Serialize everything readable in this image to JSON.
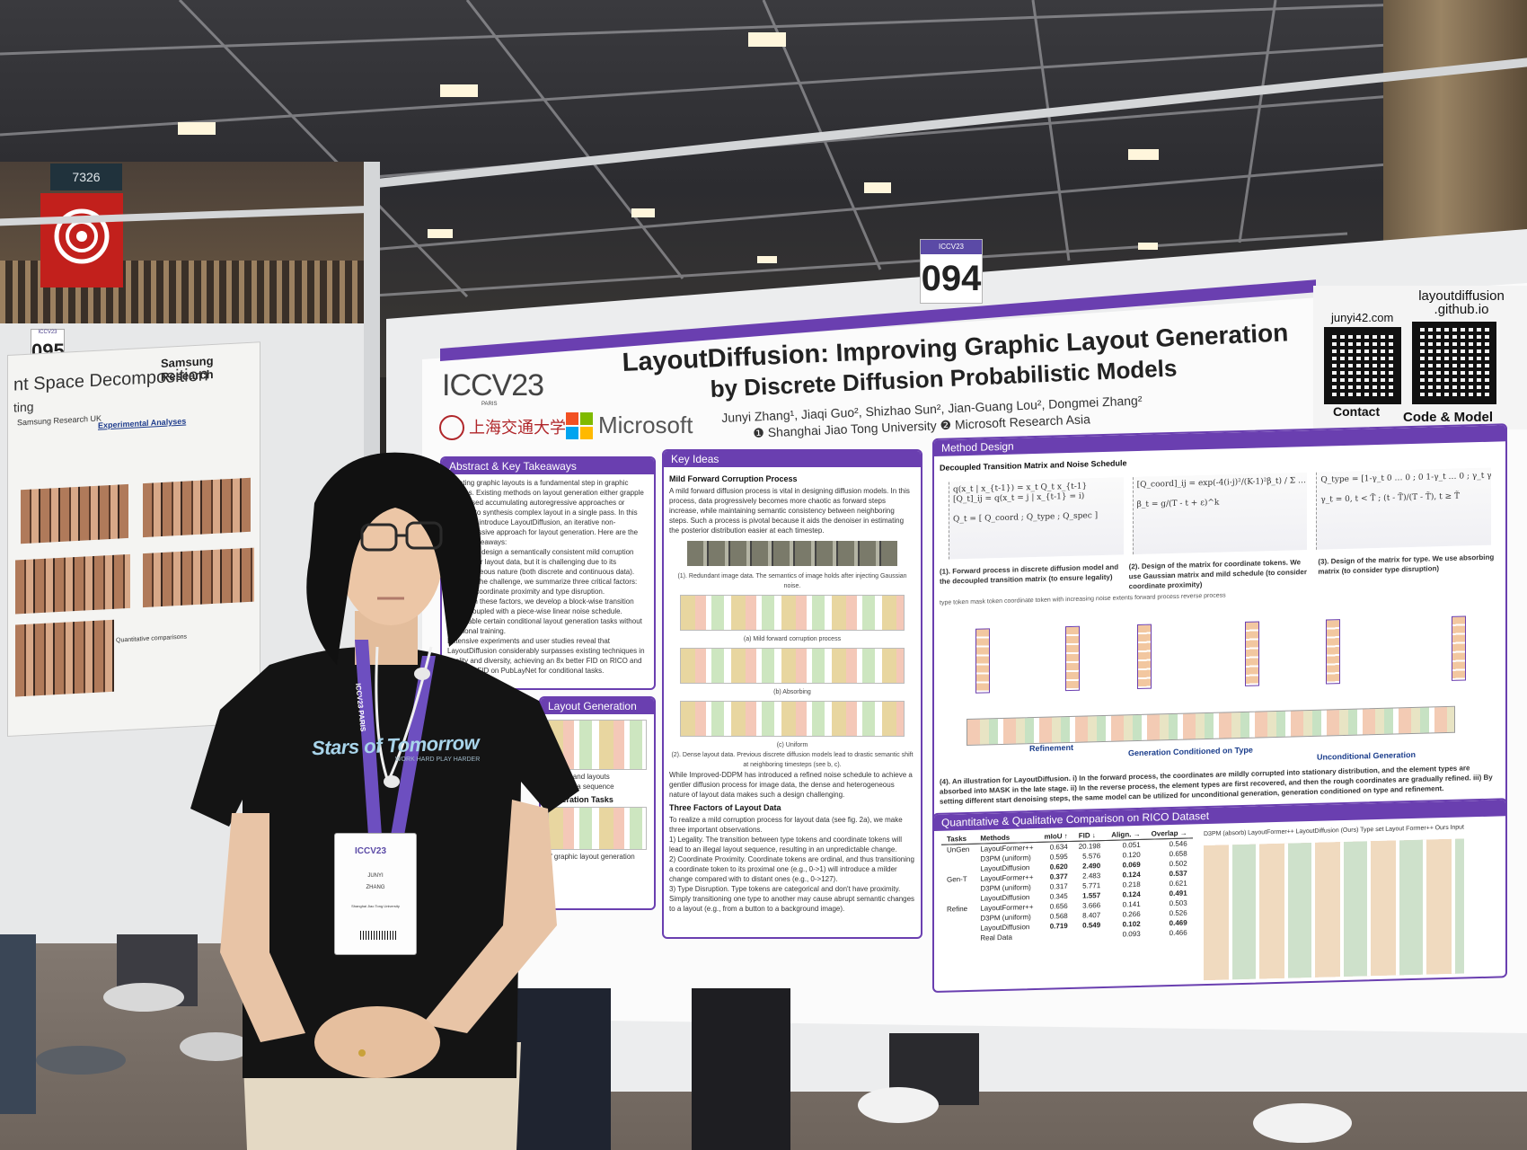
{
  "venue": {
    "left_sign_number": "7326",
    "left_board_number": "095",
    "main_board_number": "094",
    "board_tag_small": "ICCV23"
  },
  "left_poster": {
    "title": "nt Space Decomposition",
    "title_line2": "ting",
    "brand": "Samsung Research",
    "affiliation": "Samsung Research UK",
    "section": "Experimental Analyses",
    "caption": "Quantitative comparisons"
  },
  "poster": {
    "title_prefix": "LayoutDiffusion:",
    "title_rest": " Improving Graphic Layout Generation",
    "title_line2": "by Discrete Diffusion Probabilistic Models",
    "authors": "Junyi Zhang¹, Jiaqi Guo², Shizhao Sun², Jian-Guang Lou², Dongmei Zhang²",
    "affiliations": "❶ Shanghai Jiao Tong University  ❷ Microsoft Research Asia",
    "logos": {
      "iccv": "ICCV23",
      "iccv_sub": "PARIS",
      "sjtu": "上海交通大学",
      "microsoft": "Microsoft"
    },
    "links": {
      "contact_url": "junyi42.com",
      "contact_label": "Contact",
      "code_url": "layoutdiffusion .github.io",
      "code_label": "Code & Model"
    },
    "abstract": {
      "heading": "Abstract & Key Takeaways",
      "text": "Creating graphic layouts is a fundamental step in graphic designs. Existing methods on layout generation either grapple with biased accumulating autoregressive approaches or struggle to synthesis complex layout in a single pass. In this study, we introduce LayoutDiffusion, an iterative non-autoregressive approach for layout generation. Here are the central takeaways:",
      "point1": "We aim to design a semantically consistent mild corruption process for layout data, but it is challenging due to its heterogeneous nature (both discrete and continuous data).",
      "point2": "To tackle the challenge, we summarize three critical factors: Legality, coordinate proximity and type disruption.",
      "point3": "Based on these factors, we develop a block-wise transition matrix coupled with a piece-wise linear noise schedule.",
      "point4": "We enable certain conditional layout generation tasks without additional training.",
      "point5": "Extensive experiments and user studies reveal that LayoutDiffusion considerably surpasses existing techniques in quality and diversity, achieving an 8x better FID on RICO and 4x better FID on PubLayNet for conditional tasks."
    },
    "layout_generation": {
      "heading": "Layout Generation",
      "text1": "designs and layouts",
      "text2": "layout as a sequence",
      "text3": "Generation Tasks",
      "caption": "of graphic layout generation"
    },
    "key_ideas": {
      "heading": "Key Ideas",
      "sub1": "Mild Forward Corruption Process",
      "text1": "A mild forward diffusion process is vital in designing diffusion models. In this process, data progressively becomes more chaotic as forward steps increase, while maintaining semantic consistency between neighboring steps. Such a process is pivotal because it aids the denoiser in estimating the posterior distribution easier at each timestep.",
      "cap1": "(1). Redundant image data. The semantics of image holds after injecting Gaussian noise.",
      "cap_a": "(a) Mild forward corruption process",
      "cap_b": "(b) Absorbing",
      "cap_c": "(c) Uniform",
      "cap2": "(2). Dense layout data. Previous discrete diffusion models lead to drastic semantic shift at neighboring timesteps (see b, c).",
      "text2": "While Improved-DDPM has introduced a refined noise schedule to achieve a gentler diffusion process for image data, the dense and heterogeneous nature of layout data makes such a design challenging.",
      "sub2": "Three Factors of Layout Data",
      "text3": "To realize a mild corruption process for layout data (see fig. 2a), we make three important observations.",
      "f1": "1) Legality. The transition between type tokens and coordinate tokens will lead to an illegal layout sequence, resulting in an unpredictable change.",
      "f2": "2) Coordinate Proximity. Coordinate tokens are ordinal, and thus transitioning a coordinate token to its proximal one (e.g., 0->1) will introduce a milder change compared with to distant ones (e.g., 0->127).",
      "f3": "3) Type Disruption. Type tokens are categorical and don't have proximity. Simply transitioning one type to another may cause abrupt semantic changes to a layout (e.g., from a button to a background image)."
    },
    "method": {
      "heading": "Method Design",
      "sub": "Decoupled Transition Matrix and Noise Schedule",
      "cap1": "(1). Forward process in discrete diffusion model and the decoupled transition matrix (to ensure legality)",
      "cap2": "(2). Design of the matrix for coordinate tokens. We use Gaussian matrix and mild schedule (to consider coordinate proximity)",
      "cap3": "(3). Design of the matrix for type. We use absorbing matrix (to consider type disruption)",
      "legend": "type token   mask token   coordinate token with increasing noise extents   forward process   reverse process",
      "refinement": "Refinement",
      "gen_type": "Generation Conditioned on Type",
      "uncond": "Unconditional Generation",
      "cap4": "(4). An illustration for LayoutDiffusion. i) In the forward process, the coordinates are mildly corrupted into stationary distribution, and the element types are absorbed into MASK in the late stage. ii) In the reverse process, the element types are first recovered, and then the rough coordinates are gradually refined. iii) By setting different start denoising steps, the same model can be utilized for unconditional generation, generation conditioned on type and refinement."
    },
    "results": {
      "heading": "Quantitative & Qualitative Comparison on RICO Dataset",
      "columns": [
        "Tasks",
        "Methods",
        "mIoU ↑",
        "FID ↓",
        "Align. →",
        "Overlap →"
      ],
      "rows": [
        [
          "UnGen",
          "LayoutFormer++",
          "0.634",
          "20.198",
          "0.051",
          "0.546"
        ],
        [
          "",
          "D3PM (uniform)",
          "0.595",
          "5.576",
          "0.120",
          "0.658"
        ],
        [
          "",
          "LayoutDiffusion",
          "0.620",
          "2.490",
          "0.069",
          "0.502"
        ],
        [
          "Gen-T",
          "LayoutFormer++",
          "0.377",
          "2.483",
          "0.124",
          "0.537"
        ],
        [
          "",
          "D3PM (uniform)",
          "0.317",
          "5.771",
          "0.218",
          "0.621"
        ],
        [
          "",
          "LayoutDiffusion",
          "0.345",
          "1.557",
          "0.124",
          "0.491"
        ],
        [
          "Refine",
          "LayoutFormer++",
          "0.656",
          "3.666",
          "0.141",
          "0.503"
        ],
        [
          "",
          "D3PM (uniform)",
          "0.568",
          "8.407",
          "0.266",
          "0.526"
        ],
        [
          "",
          "LayoutDiffusion",
          "0.719",
          "0.549",
          "0.102",
          "0.469"
        ],
        [
          "",
          "Real Data",
          "",
          "",
          "0.093",
          "0.466"
        ]
      ],
      "qual_labels": [
        "D3PM (absorb)",
        "LayoutFormer++",
        "LayoutDiffusion (Ours)",
        "Type set",
        "Layout Former++",
        "Ours",
        "Input"
      ]
    }
  },
  "person": {
    "shirt_text": "Stars of Tomorrow",
    "shirt_small": "WORK HARD  PLAY HARDER",
    "lanyard_text": "ICCV23 PARIS",
    "badge": {
      "logo": "ICCV23",
      "first": "JUNYI",
      "last": "ZHANG",
      "org": "Shanghai Jiao Tong University"
    }
  }
}
